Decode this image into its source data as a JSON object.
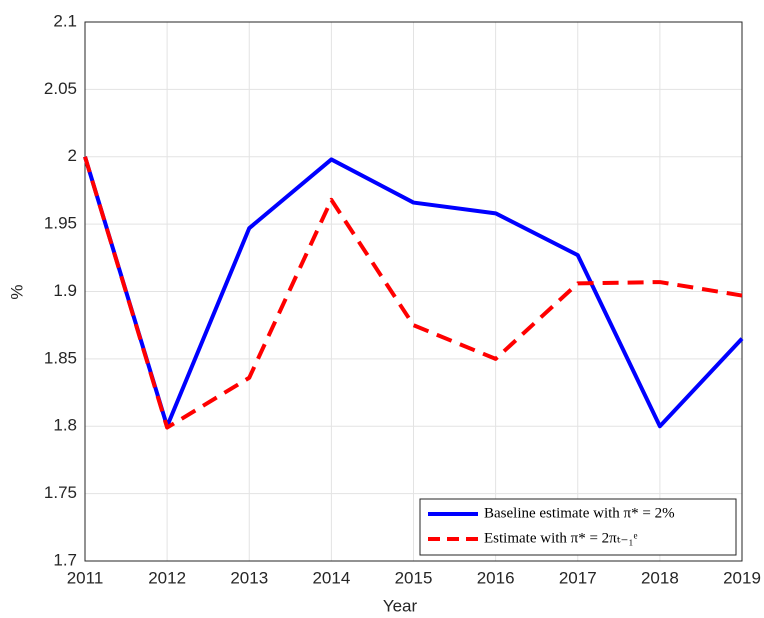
{
  "chart_data": {
    "type": "line",
    "x": [
      2011,
      2012,
      2013,
      2014,
      2015,
      2016,
      2017,
      2018,
      2019
    ],
    "x_label": "Year",
    "y_label": "%",
    "series": [
      {
        "name": "Baseline estimate with π* = 2%",
        "color": "#0000ff",
        "dashed": false,
        "values": [
          2.0,
          1.8,
          1.947,
          1.998,
          1.966,
          1.958,
          1.927,
          1.8,
          1.865
        ]
      },
      {
        "name": "Estimate with π* = 2πₜ₋₁ᵉ",
        "color": "#ff0000",
        "dashed": true,
        "values": [
          2.0,
          1.799,
          1.836,
          1.968,
          1.875,
          1.85,
          1.906,
          1.907,
          1.897
        ]
      }
    ],
    "xlim": [
      2011,
      2019
    ],
    "xticks": [
      2011,
      2012,
      2013,
      2014,
      2015,
      2016,
      2017,
      2018,
      2019
    ],
    "ylim": [
      1.7,
      2.1
    ],
    "yticks": [
      1.7,
      1.75,
      1.8,
      1.85,
      1.9,
      1.95,
      2,
      2.05,
      2.1
    ],
    "grid": true,
    "legend": "lower right"
  }
}
